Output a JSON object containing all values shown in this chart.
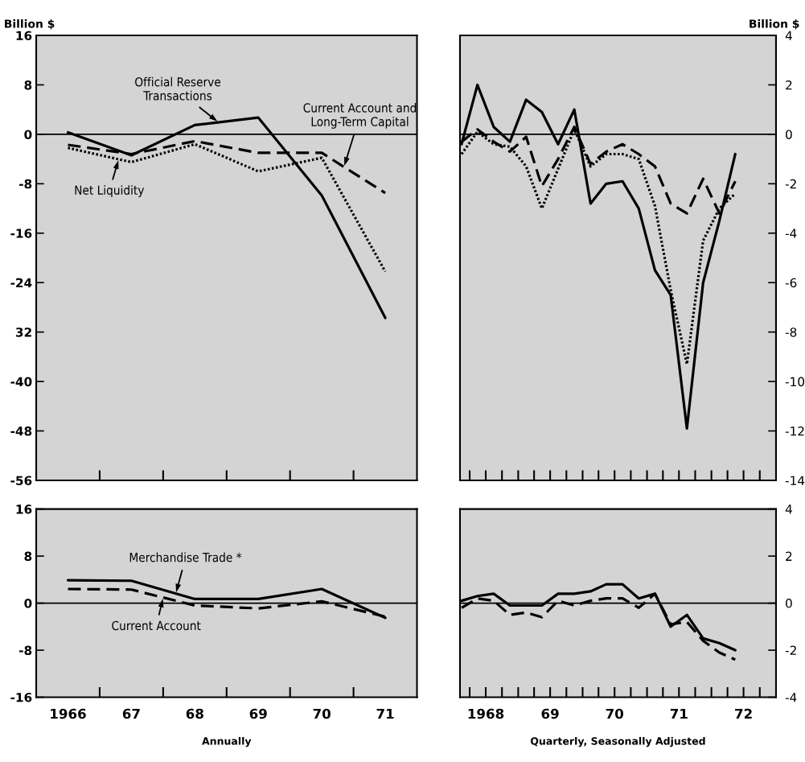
{
  "chart_data": [
    {
      "type": "line",
      "ylabel": "Billion $",
      "x": [
        1966,
        1967,
        1968,
        1969,
        1970,
        1971
      ],
      "xlim": [
        1965.5,
        1971.5
      ],
      "ylim": [
        -56,
        16
      ],
      "xticks": [
        {
          "value": 1966.5,
          "label": null
        },
        {
          "value": 1967.5,
          "label": null
        },
        {
          "value": 1968.5,
          "label": null
        },
        {
          "value": 1969.5,
          "label": null
        },
        {
          "value": 1970.5,
          "label": null
        }
      ],
      "yticks": [
        16,
        8,
        0,
        -8,
        -16,
        -24,
        {
          "value": -32,
          "label": "32"
        },
        -40,
        -48,
        -56
      ],
      "tick_labels": "y",
      "ref_lines": [
        {
          "axis": "y",
          "value": 0,
          "color": "#000000"
        }
      ],
      "series": [
        {
          "name": "Official Reserve Transactions",
          "color": "#000000",
          "line_style": "solid",
          "values": [
            0.3,
            -3.4,
            1.5,
            2.7,
            -9.9,
            -29.7
          ]
        },
        {
          "name": "Current Account and Long-Term Capital",
          "color": "#000000",
          "line_style": "dashed",
          "values": [
            -1.7,
            -3.2,
            -1.1,
            -3.0,
            -3.0,
            -9.5
          ]
        },
        {
          "name": "Net Liquidity",
          "color": "#000000",
          "line_style": "dotted",
          "values": [
            -2.2,
            -4.5,
            -1.6,
            -6.0,
            -3.8,
            -22.2
          ]
        }
      ]
    },
    {
      "type": "line",
      "ylabel": "Billion $",
      "x": [
        "1968-02-15",
        "1968-05-15",
        "1968-08-15",
        "1968-11-15",
        "1969-02-15",
        "1969-05-15",
        "1969-08-15",
        "1969-11-15",
        "1970-02-15",
        "1970-05-15",
        "1970-08-15",
        "1970-11-15",
        "1971-02-15",
        "1971-05-15",
        "1971-08-15",
        "1971-11-15",
        "1972-02-15",
        "1972-05-15"
      ],
      "xlim": [
        "1968-02-06",
        "1973-01-01"
      ],
      "ylim": [
        -14,
        4
      ],
      "xticks": [
        {
          "value": "1968-04-01",
          "label": null
        },
        {
          "value": "1968-07-01",
          "label": null
        },
        {
          "value": "1968-10-01",
          "label": null
        },
        {
          "value": "1969-01-01",
          "label": null
        },
        {
          "value": "1969-04-01",
          "label": null
        },
        {
          "value": "1969-07-01",
          "label": null
        },
        {
          "value": "1969-10-01",
          "label": null
        },
        {
          "value": "1970-01-01",
          "label": null
        },
        {
          "value": "1970-04-01",
          "label": null
        },
        {
          "value": "1970-07-01",
          "label": null
        },
        {
          "value": "1970-10-01",
          "label": null
        },
        {
          "value": "1971-01-01",
          "label": null
        },
        {
          "value": "1971-04-01",
          "label": null
        },
        {
          "value": "1971-07-01",
          "label": null
        },
        {
          "value": "1971-10-01",
          "label": null
        },
        {
          "value": "1972-01-01",
          "label": null
        },
        {
          "value": "1972-04-01",
          "label": null
        },
        {
          "value": "1972-07-01",
          "label": null
        },
        {
          "value": "1972-10-01",
          "label": null
        }
      ],
      "yticks": [
        4,
        2,
        0,
        -2,
        -4,
        -6,
        -8,
        -10,
        -12,
        -14
      ],
      "tick_labels": "y",
      "ref_lines": [
        {
          "axis": "y",
          "value": 0,
          "color": "#000000"
        }
      ],
      "series": [
        {
          "color": "#000000",
          "line_style": "solid",
          "values": [
            -0.4,
            2.0,
            0.3,
            -0.3,
            1.4,
            0.9,
            -0.4,
            1.0,
            -2.8,
            -2.0,
            -1.9,
            -3.0,
            -5.5,
            -6.5,
            -11.9,
            -6.0,
            -3.5,
            -0.8
          ]
        },
        {
          "color": "#000000",
          "line_style": "dashed",
          "values": [
            -0.3,
            0.2,
            -0.3,
            -0.7,
            -0.1,
            -2.1,
            -1.0,
            0.3,
            -1.2,
            -0.7,
            -0.4,
            -0.8,
            -1.3,
            -2.8,
            -3.2,
            -1.8,
            -3.2,
            -1.9
          ]
        },
        {
          "color": "#000000",
          "line_style": "dotted",
          "values": [
            -0.8,
            0.1,
            -0.4,
            -0.5,
            -1.3,
            -3.0,
            -1.4,
            0.2,
            -1.3,
            -0.8,
            -0.8,
            -1.0,
            -2.9,
            -6.3,
            -9.3,
            -4.3,
            -3.0,
            -2.4
          ]
        }
      ]
    },
    {
      "type": "line",
      "xlabel": "Annually",
      "x": [
        1966,
        1967,
        1968,
        1969,
        1970,
        1971
      ],
      "xlim": [
        1965.5,
        1971.5
      ],
      "ylim": [
        -16,
        16
      ],
      "xticks": [
        1966,
        {
          "value": 1966.5,
          "label": null
        },
        {
          "value": 1967,
          "label": "67"
        },
        {
          "value": 1967.5,
          "label": null
        },
        {
          "value": 1968,
          "label": "68"
        },
        {
          "value": 1968.5,
          "label": null
        },
        {
          "value": 1969,
          "label": "69"
        },
        {
          "value": 1969.5,
          "label": null
        },
        {
          "value": 1970,
          "label": "70"
        },
        {
          "value": 1970.5,
          "label": null
        },
        {
          "value": 1971,
          "label": "71"
        }
      ],
      "yticks": [
        16,
        8,
        0,
        -8,
        -16
      ],
      "ref_lines": [
        {
          "axis": "y",
          "value": 0,
          "color": "#000000"
        }
      ],
      "series": [
        {
          "name": "Merchandise Trade *",
          "color": "#000000",
          "line_style": "solid",
          "values": [
            3.9,
            3.8,
            0.7,
            0.7,
            2.4,
            -2.5
          ]
        },
        {
          "name": "Current Account",
          "color": "#000000",
          "line_style": "dashed",
          "values": [
            2.4,
            2.3,
            -0.4,
            -0.9,
            0.3,
            -2.3
          ]
        }
      ]
    },
    {
      "type": "line",
      "xlabel": "Quarterly, Seasonally Adjusted",
      "x": [
        "1968-02-15",
        "1968-05-15",
        "1968-08-15",
        "1968-11-15",
        "1969-02-15",
        "1969-05-15",
        "1969-08-15",
        "1969-11-15",
        "1970-02-15",
        "1970-05-15",
        "1970-08-15",
        "1970-11-15",
        "1971-02-15",
        "1971-05-15",
        "1971-08-15",
        "1971-11-15",
        "1972-02-15",
        "1972-05-15"
      ],
      "xlim": [
        "1968-02-06",
        "1973-01-01"
      ],
      "ylim": [
        -4,
        4
      ],
      "xticks": [
        {
          "value": "1968-04-01",
          "label": null
        },
        {
          "value": "1968-07-01",
          "label": "1968"
        },
        {
          "value": "1968-10-01",
          "label": null
        },
        {
          "value": "1969-01-01",
          "label": null
        },
        {
          "value": "1969-04-01",
          "label": null
        },
        {
          "value": "1969-07-01",
          "label": "69"
        },
        {
          "value": "1969-10-01",
          "label": null
        },
        {
          "value": "1970-01-01",
          "label": null
        },
        {
          "value": "1970-04-01",
          "label": null
        },
        {
          "value": "1970-07-01",
          "label": "70"
        },
        {
          "value": "1970-10-01",
          "label": null
        },
        {
          "value": "1971-01-01",
          "label": null
        },
        {
          "value": "1971-04-01",
          "label": null
        },
        {
          "value": "1971-07-01",
          "label": "71"
        },
        {
          "value": "1971-10-01",
          "label": null
        },
        {
          "value": "1972-01-01",
          "label": null
        },
        {
          "value": "1972-04-01",
          "label": null
        },
        {
          "value": "1972-07-01",
          "label": "72"
        },
        {
          "value": "1972-10-01",
          "label": null
        }
      ],
      "yticks": [
        4,
        2,
        0,
        -2,
        -4
      ],
      "ref_lines": [
        {
          "axis": "y",
          "value": 0,
          "color": "#000000"
        }
      ],
      "series": [
        {
          "color": "#000000",
          "line_style": "solid",
          "values": [
            0.1,
            0.3,
            0.4,
            -0.1,
            -0.1,
            -0.1,
            0.4,
            0.4,
            0.5,
            0.8,
            0.8,
            0.2,
            0.4,
            -1.0,
            -0.5,
            -1.5,
            -1.7,
            -2.0
          ]
        },
        {
          "color": "#000000",
          "line_style": "dashed",
          "values": [
            -0.2,
            0.2,
            0.1,
            -0.5,
            -0.4,
            -0.6,
            0.1,
            -0.1,
            0.1,
            0.2,
            0.2,
            -0.2,
            0.4,
            -0.9,
            -0.8,
            -1.6,
            -2.1,
            -2.4
          ]
        }
      ]
    }
  ]
}
